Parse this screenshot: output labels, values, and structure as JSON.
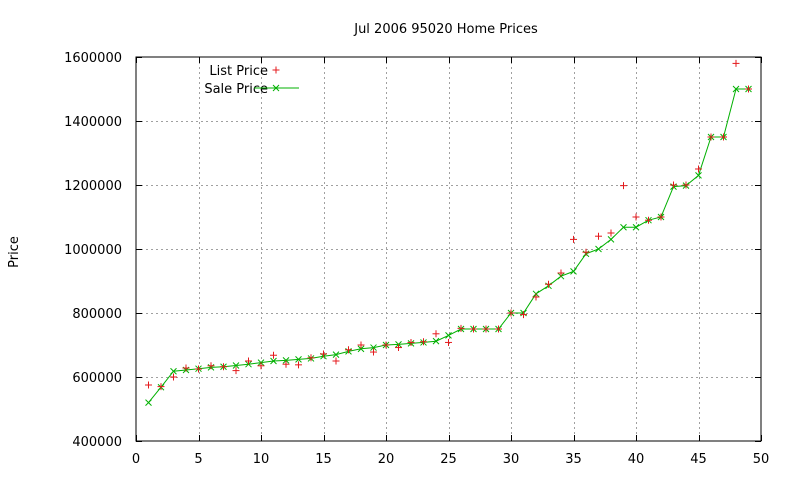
{
  "chart_data": {
    "type": "line",
    "title": "Jul 2006 95020 Home Prices",
    "xlabel": "",
    "ylabel": "Price",
    "xlim": [
      0,
      50
    ],
    "ylim": [
      400000,
      1600000
    ],
    "xticks": [
      "0",
      "5",
      "10",
      "15",
      "20",
      "25",
      "30",
      "35",
      "40",
      "45",
      "50"
    ],
    "yticks": [
      "400000",
      "600000",
      "800000",
      "1000000",
      "1200000",
      "1400000",
      "1600000"
    ],
    "grid": true,
    "legend_position": "top-left",
    "series": [
      {
        "name": "List Price",
        "style": "points",
        "marker": "plus",
        "color": "#e41a1c",
        "x": [
          1,
          2,
          3,
          4,
          5,
          6,
          7,
          8,
          9,
          10,
          11,
          12,
          13,
          14,
          15,
          16,
          17,
          18,
          19,
          20,
          21,
          22,
          23,
          24,
          25,
          26,
          27,
          28,
          29,
          30,
          31,
          32,
          33,
          34,
          35,
          36,
          37,
          38,
          39,
          40,
          41,
          42,
          43,
          44,
          45,
          46,
          47,
          48,
          49
        ],
        "y": [
          575000,
          570000,
          600000,
          628000,
          625000,
          635000,
          632000,
          620000,
          650000,
          635000,
          668000,
          640000,
          638000,
          660000,
          672000,
          650000,
          685000,
          700000,
          678000,
          700000,
          692000,
          708000,
          710000,
          735000,
          708000,
          752000,
          750000,
          750000,
          750000,
          800000,
          795000,
          850000,
          890000,
          925000,
          1030000,
          990000,
          1040000,
          1050000,
          1198000,
          1100000,
          1090000,
          1100000,
          1200000,
          1200000,
          1250000,
          1350000,
          1350000,
          1580000,
          1500000
        ]
      },
      {
        "name": "Sale Price",
        "style": "linespoints",
        "marker": "x",
        "color": "#00b000",
        "x": [
          1,
          2,
          3,
          4,
          5,
          6,
          7,
          8,
          9,
          10,
          11,
          12,
          13,
          14,
          15,
          16,
          17,
          18,
          19,
          20,
          21,
          22,
          23,
          24,
          25,
          26,
          27,
          28,
          29,
          30,
          31,
          32,
          33,
          34,
          35,
          36,
          37,
          38,
          39,
          40,
          41,
          42,
          43,
          44,
          45,
          46,
          47,
          48,
          49
        ],
        "y": [
          520000,
          568000,
          618000,
          622000,
          626000,
          630000,
          632000,
          636000,
          640000,
          645000,
          650000,
          652000,
          655000,
          658000,
          665000,
          670000,
          680000,
          688000,
          692000,
          700000,
          702000,
          705000,
          708000,
          712000,
          730000,
          750000,
          750000,
          750000,
          750000,
          800000,
          800000,
          860000,
          885000,
          915000,
          930000,
          985000,
          1000000,
          1030000,
          1068000,
          1068000,
          1090000,
          1100000,
          1195000,
          1198000,
          1230000,
          1350000,
          1350000,
          1500000,
          1500000
        ]
      }
    ]
  }
}
